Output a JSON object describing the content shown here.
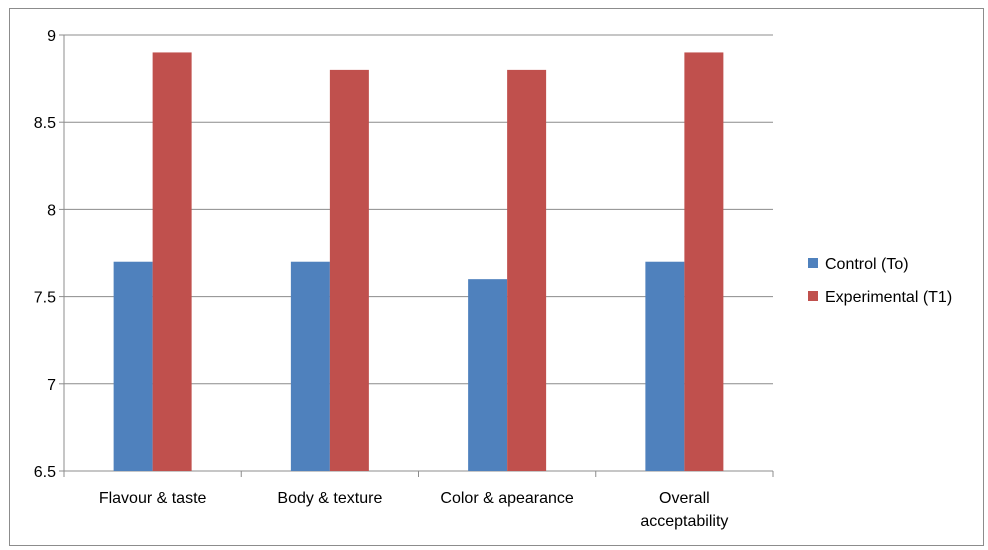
{
  "chart_data": {
    "type": "bar",
    "title": "",
    "xlabel": "",
    "ylabel": "",
    "categories": [
      [
        "Flavour & taste"
      ],
      [
        "Body & texture"
      ],
      [
        "Color & apearance"
      ],
      [
        "Overall",
        "acceptability"
      ]
    ],
    "series": [
      {
        "name": "Control (To)",
        "color": "#4f81bd",
        "values": [
          7.7,
          7.7,
          7.6,
          7.7
        ]
      },
      {
        "name": "Experimental (T1)",
        "color": "#c0504d",
        "values": [
          8.9,
          8.8,
          8.8,
          8.9
        ]
      }
    ],
    "ylim": [
      6.5,
      9
    ],
    "yticks": [
      "6.5",
      "7",
      "7.5",
      "8",
      "8.5",
      "9"
    ],
    "grid": true,
    "legend_position": "right"
  }
}
